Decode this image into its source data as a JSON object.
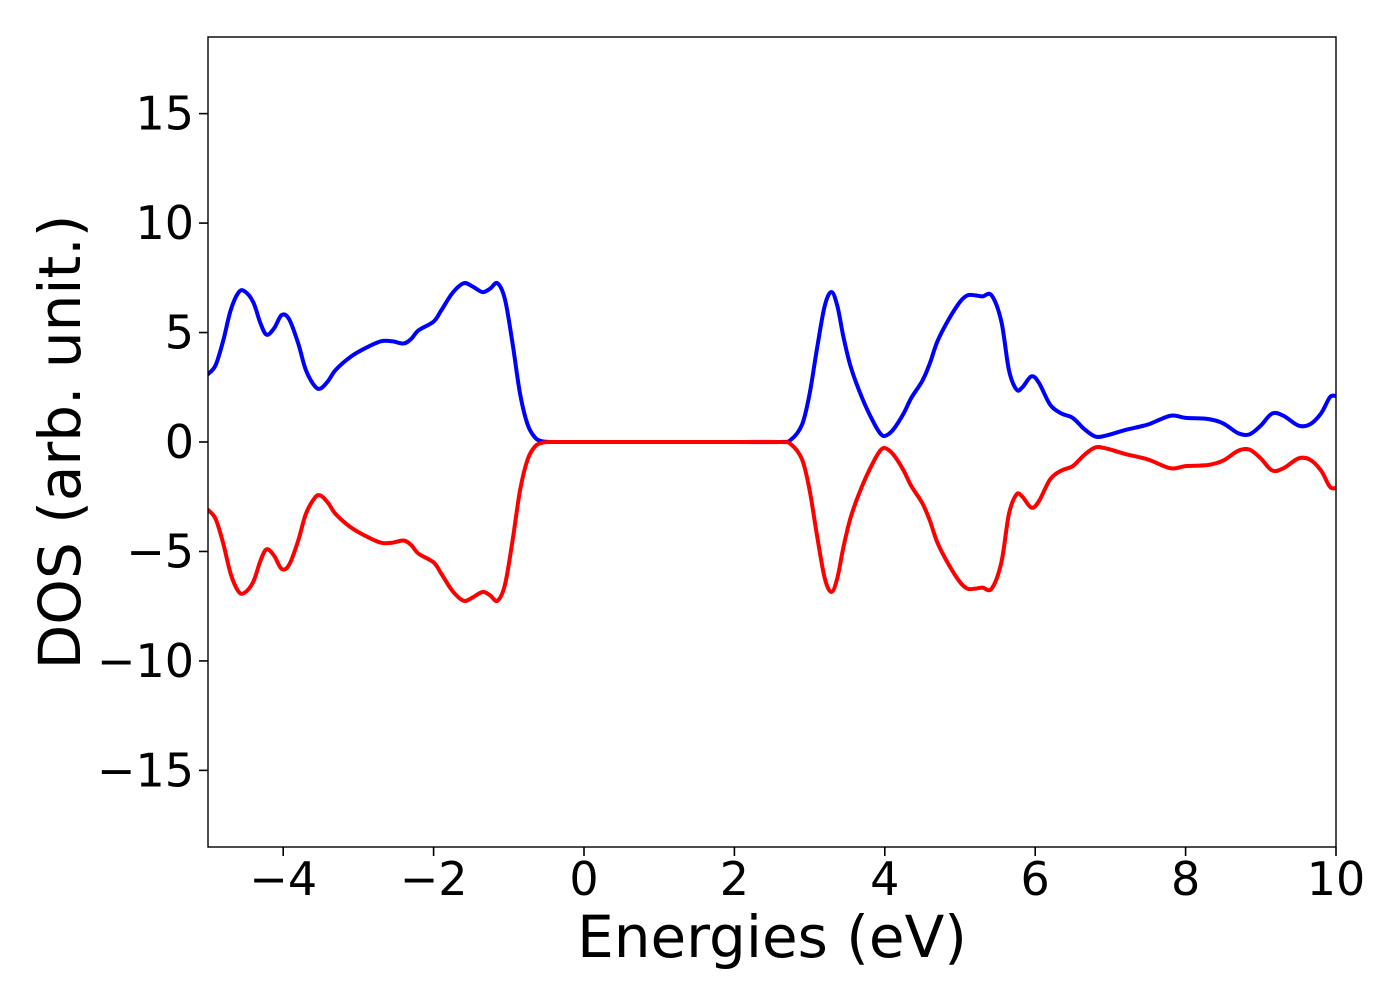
{
  "chart_data": {
    "type": "line",
    "title": "",
    "xlabel": "Energies (eV)",
    "ylabel": "DOS (arb. unit.)",
    "xlim": [
      -5,
      10
    ],
    "ylim": [
      -18.5,
      18.5
    ],
    "grid": false,
    "x_ticks": [
      -4,
      -2,
      0,
      2,
      4,
      6,
      8,
      10
    ],
    "x_tick_labels": [
      "−4",
      "−2",
      "0",
      "2",
      "4",
      "6",
      "8",
      "10"
    ],
    "y_ticks": [
      15,
      10,
      5,
      0,
      -5,
      -10,
      -15
    ],
    "y_tick_labels": [
      "15",
      "10",
      "5",
      "0",
      "−5",
      "−10",
      "−15"
    ],
    "series": [
      {
        "color": "#0000ff",
        "points": [
          [
            -5.0,
            3.1
          ],
          [
            -4.9,
            3.5
          ],
          [
            -4.8,
            4.6
          ],
          [
            -4.7,
            6.0
          ],
          [
            -4.6,
            6.8
          ],
          [
            -4.52,
            6.9
          ],
          [
            -4.4,
            6.4
          ],
          [
            -4.3,
            5.4
          ],
          [
            -4.22,
            4.9
          ],
          [
            -4.12,
            5.2
          ],
          [
            -4.02,
            5.8
          ],
          [
            -3.92,
            5.6
          ],
          [
            -3.8,
            4.5
          ],
          [
            -3.7,
            3.3
          ],
          [
            -3.58,
            2.55
          ],
          [
            -3.5,
            2.45
          ],
          [
            -3.4,
            2.8
          ],
          [
            -3.3,
            3.3
          ],
          [
            -3.1,
            3.9
          ],
          [
            -2.9,
            4.3
          ],
          [
            -2.7,
            4.6
          ],
          [
            -2.55,
            4.6
          ],
          [
            -2.4,
            4.5
          ],
          [
            -2.3,
            4.7
          ],
          [
            -2.2,
            5.1
          ],
          [
            -2.0,
            5.5
          ],
          [
            -1.9,
            6.0
          ],
          [
            -1.75,
            6.8
          ],
          [
            -1.6,
            7.25
          ],
          [
            -1.48,
            7.1
          ],
          [
            -1.35,
            6.85
          ],
          [
            -1.25,
            7.0
          ],
          [
            -1.15,
            7.25
          ],
          [
            -1.05,
            6.5
          ],
          [
            -0.95,
            4.5
          ],
          [
            -0.85,
            2.2
          ],
          [
            -0.75,
            0.8
          ],
          [
            -0.65,
            0.2
          ],
          [
            -0.55,
            0.03
          ],
          [
            -0.4,
            0.0
          ],
          [
            0.0,
            0.0
          ],
          [
            1.0,
            0.0
          ],
          [
            2.0,
            0.0
          ],
          [
            2.6,
            0.0
          ],
          [
            2.75,
            0.1
          ],
          [
            2.9,
            0.8
          ],
          [
            3.0,
            2.2
          ],
          [
            3.1,
            4.3
          ],
          [
            3.2,
            6.2
          ],
          [
            3.29,
            6.85
          ],
          [
            3.37,
            6.2
          ],
          [
            3.45,
            4.8
          ],
          [
            3.55,
            3.4
          ],
          [
            3.7,
            2.0
          ],
          [
            3.85,
            0.9
          ],
          [
            3.95,
            0.35
          ],
          [
            4.02,
            0.3
          ],
          [
            4.12,
            0.6
          ],
          [
            4.25,
            1.3
          ],
          [
            4.35,
            2.0
          ],
          [
            4.5,
            2.8
          ],
          [
            4.6,
            3.6
          ],
          [
            4.7,
            4.6
          ],
          [
            4.85,
            5.6
          ],
          [
            5.0,
            6.4
          ],
          [
            5.1,
            6.7
          ],
          [
            5.2,
            6.7
          ],
          [
            5.3,
            6.65
          ],
          [
            5.42,
            6.7
          ],
          [
            5.55,
            5.5
          ],
          [
            5.65,
            3.3
          ],
          [
            5.75,
            2.4
          ],
          [
            5.83,
            2.5
          ],
          [
            5.95,
            3.0
          ],
          [
            6.05,
            2.7
          ],
          [
            6.2,
            1.7
          ],
          [
            6.35,
            1.3
          ],
          [
            6.5,
            1.1
          ],
          [
            6.65,
            0.6
          ],
          [
            6.8,
            0.25
          ],
          [
            6.95,
            0.3
          ],
          [
            7.2,
            0.55
          ],
          [
            7.5,
            0.8
          ],
          [
            7.8,
            1.2
          ],
          [
            8.0,
            1.1
          ],
          [
            8.3,
            1.05
          ],
          [
            8.5,
            0.85
          ],
          [
            8.7,
            0.4
          ],
          [
            8.85,
            0.35
          ],
          [
            9.0,
            0.75
          ],
          [
            9.15,
            1.3
          ],
          [
            9.3,
            1.2
          ],
          [
            9.5,
            0.75
          ],
          [
            9.65,
            0.8
          ],
          [
            9.8,
            1.3
          ],
          [
            9.92,
            2.05
          ],
          [
            10.0,
            2.1
          ]
        ]
      },
      {
        "color": "#ff0000",
        "points": [
          [
            -5.0,
            -3.1
          ],
          [
            -4.9,
            -3.5
          ],
          [
            -4.8,
            -4.6
          ],
          [
            -4.7,
            -6.0
          ],
          [
            -4.6,
            -6.8
          ],
          [
            -4.52,
            -6.9
          ],
          [
            -4.4,
            -6.4
          ],
          [
            -4.3,
            -5.4
          ],
          [
            -4.22,
            -4.9
          ],
          [
            -4.12,
            -5.2
          ],
          [
            -4.02,
            -5.8
          ],
          [
            -3.92,
            -5.6
          ],
          [
            -3.8,
            -4.5
          ],
          [
            -3.7,
            -3.3
          ],
          [
            -3.58,
            -2.55
          ],
          [
            -3.5,
            -2.45
          ],
          [
            -3.4,
            -2.8
          ],
          [
            -3.3,
            -3.3
          ],
          [
            -3.1,
            -3.9
          ],
          [
            -2.9,
            -4.3
          ],
          [
            -2.7,
            -4.6
          ],
          [
            -2.55,
            -4.6
          ],
          [
            -2.4,
            -4.5
          ],
          [
            -2.3,
            -4.7
          ],
          [
            -2.2,
            -5.1
          ],
          [
            -2.0,
            -5.5
          ],
          [
            -1.9,
            -6.0
          ],
          [
            -1.75,
            -6.8
          ],
          [
            -1.6,
            -7.25
          ],
          [
            -1.48,
            -7.1
          ],
          [
            -1.35,
            -6.85
          ],
          [
            -1.25,
            -7.0
          ],
          [
            -1.15,
            -7.25
          ],
          [
            -1.05,
            -6.5
          ],
          [
            -0.95,
            -4.5
          ],
          [
            -0.85,
            -2.2
          ],
          [
            -0.75,
            -0.8
          ],
          [
            -0.65,
            -0.2
          ],
          [
            -0.55,
            -0.03
          ],
          [
            -0.4,
            0.0
          ],
          [
            0.0,
            0.0
          ],
          [
            1.0,
            0.0
          ],
          [
            2.0,
            0.0
          ],
          [
            2.6,
            0.0
          ],
          [
            2.75,
            -0.1
          ],
          [
            2.9,
            -0.8
          ],
          [
            3.0,
            -2.2
          ],
          [
            3.1,
            -4.3
          ],
          [
            3.2,
            -6.2
          ],
          [
            3.29,
            -6.85
          ],
          [
            3.37,
            -6.2
          ],
          [
            3.45,
            -4.8
          ],
          [
            3.55,
            -3.4
          ],
          [
            3.7,
            -2.0
          ],
          [
            3.85,
            -0.9
          ],
          [
            3.95,
            -0.35
          ],
          [
            4.02,
            -0.3
          ],
          [
            4.12,
            -0.6
          ],
          [
            4.25,
            -1.3
          ],
          [
            4.35,
            -2.0
          ],
          [
            4.5,
            -2.8
          ],
          [
            4.6,
            -3.6
          ],
          [
            4.7,
            -4.6
          ],
          [
            4.85,
            -5.6
          ],
          [
            5.0,
            -6.4
          ],
          [
            5.1,
            -6.7
          ],
          [
            5.2,
            -6.7
          ],
          [
            5.3,
            -6.65
          ],
          [
            5.42,
            -6.7
          ],
          [
            5.55,
            -5.5
          ],
          [
            5.65,
            -3.3
          ],
          [
            5.75,
            -2.4
          ],
          [
            5.83,
            -2.5
          ],
          [
            5.95,
            -3.0
          ],
          [
            6.05,
            -2.7
          ],
          [
            6.2,
            -1.7
          ],
          [
            6.35,
            -1.3
          ],
          [
            6.5,
            -1.1
          ],
          [
            6.65,
            -0.6
          ],
          [
            6.8,
            -0.25
          ],
          [
            6.95,
            -0.3
          ],
          [
            7.2,
            -0.55
          ],
          [
            7.5,
            -0.8
          ],
          [
            7.8,
            -1.2
          ],
          [
            8.0,
            -1.1
          ],
          [
            8.3,
            -1.05
          ],
          [
            8.5,
            -0.85
          ],
          [
            8.7,
            -0.4
          ],
          [
            8.85,
            -0.35
          ],
          [
            9.0,
            -0.75
          ],
          [
            9.15,
            -1.3
          ],
          [
            9.3,
            -1.2
          ],
          [
            9.5,
            -0.75
          ],
          [
            9.65,
            -0.8
          ],
          [
            9.8,
            -1.3
          ],
          [
            9.92,
            -2.05
          ],
          [
            10.0,
            -2.1
          ]
        ]
      }
    ]
  }
}
